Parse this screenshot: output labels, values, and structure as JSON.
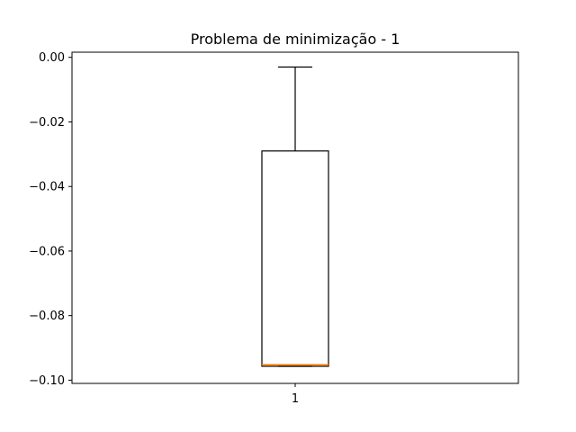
{
  "chart_data": {
    "type": "box",
    "title": "Problema de minimização - 1",
    "xlabel": "",
    "ylabel": "",
    "categories": [
      "1"
    ],
    "boxes": [
      {
        "label": "1",
        "whisker_high": -0.003,
        "q3": -0.029,
        "median": -0.0952,
        "q1": -0.0957,
        "whisker_low": -0.0957
      }
    ],
    "ylim": [
      -0.101,
      0.0016
    ],
    "yticks": [
      0.0,
      -0.02,
      -0.04,
      -0.06,
      -0.08,
      -0.1
    ],
    "ytick_labels": [
      "0.00",
      "−0.02",
      "−0.04",
      "−0.06",
      "−0.08",
      "−0.10"
    ],
    "grid": false,
    "colors": {
      "box": "#000000",
      "median": "#ff7f0e",
      "axes": "#000000"
    }
  }
}
